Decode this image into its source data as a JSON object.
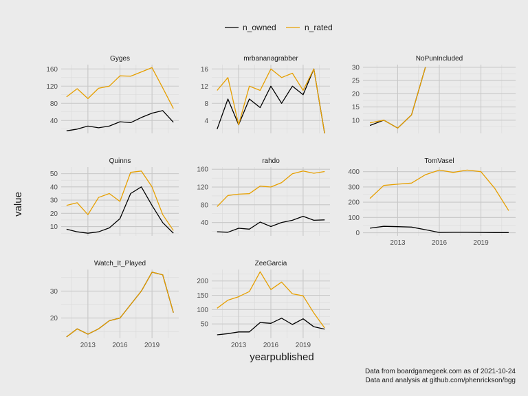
{
  "chart_data": {
    "type": "line",
    "layout": "facet-grid 3x3, free y scales",
    "xlabel": "yearpublished",
    "ylabel": "value",
    "legend": {
      "placement": "top",
      "entries": [
        "n_owned",
        "n_rated"
      ]
    },
    "colors": {
      "n_owned": "#000000",
      "n_rated": "#e69f00"
    },
    "grid": true,
    "x": [
      2011,
      2012,
      2013,
      2014,
      2015,
      2016,
      2017,
      2018,
      2019,
      2020,
      2021
    ],
    "x_ticks": [
      2013,
      2016,
      2019
    ],
    "captions": [
      "Data from boardgamegeek.com as of 2021-10-24",
      "Data and analysis at github.com/phenrickson/bgg"
    ],
    "facets": [
      {
        "name": "Gyges",
        "ylim": [
          10,
          170
        ],
        "y_ticks": [
          40,
          80,
          120,
          160
        ],
        "series": [
          {
            "name": "n_owned",
            "values": [
              16,
              20,
              27,
              23,
              27,
              37,
              35,
              47,
              57,
              63,
              36
            ]
          },
          {
            "name": "n_rated",
            "values": [
              95,
              114,
              91,
              115,
              120,
              144,
              143,
              153,
              163,
              116,
              68
            ]
          }
        ]
      },
      {
        "name": "mrbananagrabber",
        "ylim": [
          1,
          17
        ],
        "y_ticks": [
          4,
          8,
          12,
          16
        ],
        "series": [
          {
            "name": "n_owned",
            "values": [
              2,
              9,
              3,
              9,
              7,
              12,
              8,
              12,
              10,
              16,
              1
            ]
          },
          {
            "name": "n_rated",
            "values": [
              11,
              14,
              3,
              12,
              11,
              16,
              14,
              15,
              11,
              16,
              1
            ]
          }
        ]
      },
      {
        "name": "NoPunIncluded",
        "ylim": [
          5,
          31
        ],
        "y_ticks": [
          10,
          15,
          20,
          25,
          30
        ],
        "series": [
          {
            "name": "n_owned",
            "values": [
              8,
              10,
              7,
              12,
              30,
              null,
              null,
              null,
              null,
              null,
              null
            ]
          },
          {
            "name": "n_rated",
            "values": [
              9,
              10,
              7,
              12,
              30,
              null,
              null,
              null,
              null,
              null,
              null
            ]
          }
        ]
      },
      {
        "name": "Quinns",
        "ylim": [
          3,
          55
        ],
        "y_ticks": [
          10,
          20,
          30,
          40,
          50
        ],
        "series": [
          {
            "name": "n_owned",
            "values": [
              8,
              6,
              5,
              6,
              9,
              16,
              35,
              40,
              26,
              13,
              5
            ]
          },
          {
            "name": "n_rated",
            "values": [
              26,
              28,
              19,
              32,
              35,
              29,
              51,
              52,
              40,
              19,
              7
            ]
          }
        ]
      },
      {
        "name": "rahdo",
        "ylim": [
          10,
          165
        ],
        "y_ticks": [
          40,
          80,
          120,
          160
        ],
        "series": [
          {
            "name": "n_owned",
            "values": [
              19,
              18,
              27,
              25,
              41,
              31,
              40,
              45,
              54,
              45,
              46
            ]
          },
          {
            "name": "n_rated",
            "values": [
              76,
              101,
              104,
              105,
              122,
              120,
              130,
              150,
              156,
              151,
              155
            ]
          }
        ]
      },
      {
        "name": "TomVasel",
        "ylim": [
          -20,
          430
        ],
        "y_ticks": [
          0,
          100,
          200,
          300,
          400
        ],
        "series": [
          {
            "name": "n_owned",
            "values": [
              30,
              42,
              40,
              37,
              20,
              2,
              3,
              3,
              2,
              1,
              1
            ]
          },
          {
            "name": "n_rated",
            "values": [
              225,
              310,
              318,
              325,
              380,
              410,
              395,
              410,
              400,
              290,
              145
            ]
          }
        ]
      },
      {
        "name": "Watch_It_Played",
        "ylim": [
          12.5,
          38
        ],
        "y_ticks": [
          20,
          30
        ],
        "series": [
          {
            "name": "n_owned",
            "values": [
              13,
              16,
              14,
              16,
              19,
              20,
              25,
              30,
              37,
              36,
              22
            ]
          },
          {
            "name": "n_rated",
            "values": [
              13,
              16,
              14,
              16,
              19,
              20,
              25,
              30,
              37,
              36,
              22
            ]
          }
        ]
      },
      {
        "name": "ZeeGarcia",
        "ylim": [
          0,
          240
        ],
        "y_ticks": [
          50,
          100,
          150,
          200
        ],
        "series": [
          {
            "name": "n_owned",
            "values": [
              12,
              16,
              22,
              22,
              55,
              52,
              70,
              48,
              68,
              40,
              32
            ]
          },
          {
            "name": "n_rated",
            "values": [
              105,
              133,
              145,
              163,
              232,
              170,
              196,
              155,
              148,
              88,
              36
            ]
          }
        ]
      }
    ]
  }
}
